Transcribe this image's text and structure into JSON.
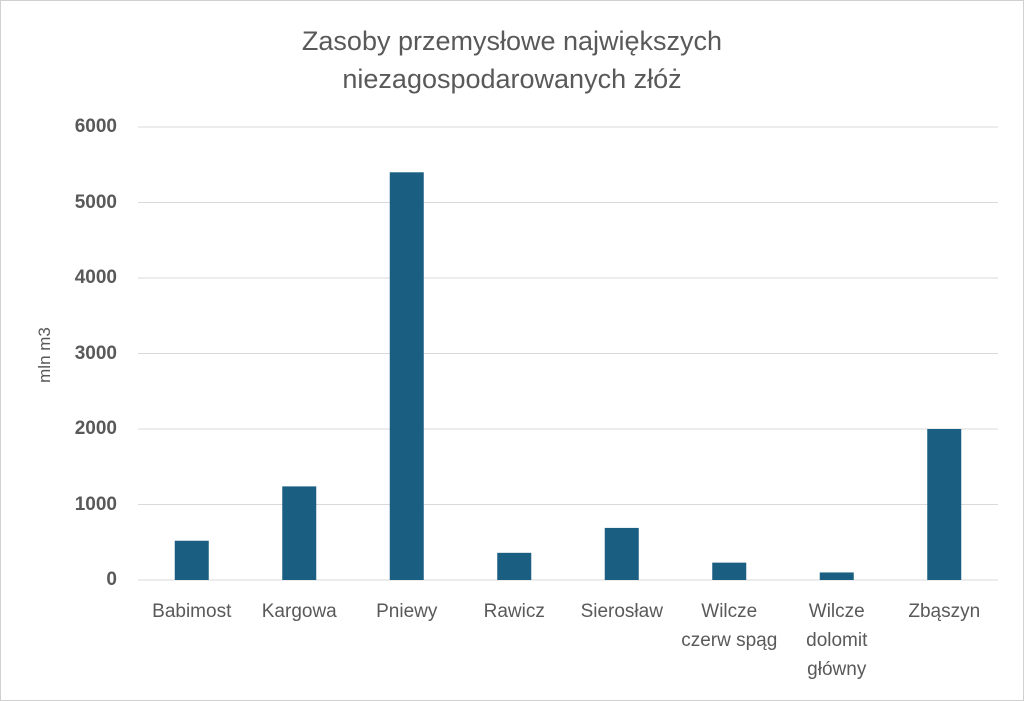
{
  "chart_data": {
    "type": "bar",
    "title": "Zasoby przemysłowe największych niezagospodarowanych złóż",
    "y_label": "mln m3",
    "categories": [
      "Babimost",
      "Kargowa",
      "Pniewy",
      "Rawicz",
      "Sierosław",
      "Wilcze czerw spąg",
      "Wilcze dolomit główny",
      "Zbąszyn"
    ],
    "values": [
      520,
      1240,
      5400,
      360,
      690,
      230,
      100,
      2000
    ],
    "color": "#1a5f82",
    "ylim": [
      0,
      6000
    ],
    "yticks": [
      0,
      1000,
      2000,
      3000,
      4000,
      5000,
      6000
    ],
    "grid": true
  }
}
